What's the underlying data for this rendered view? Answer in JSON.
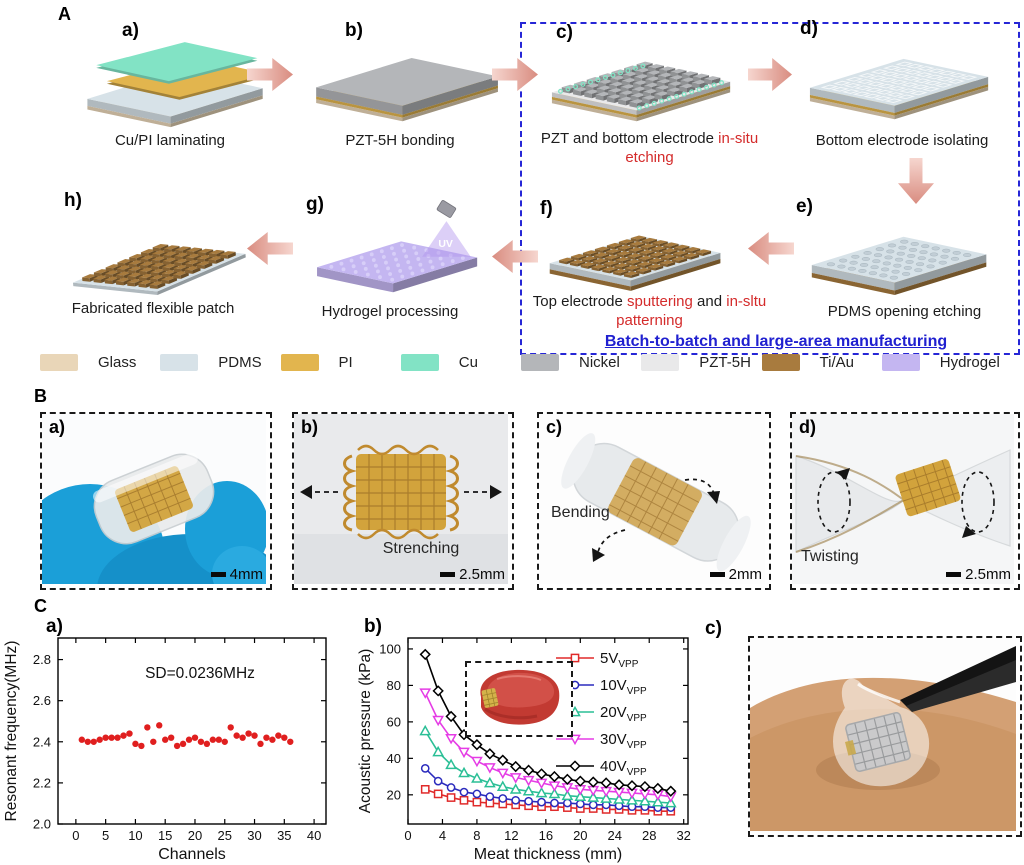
{
  "colors": {
    "accent_red": "#d42b2b",
    "box_blue": "#2626d6",
    "arrow_salmon": "#d98c80",
    "glove_blue": "#1b9fd8",
    "gold_device": "#d2a33c",
    "skin": "#d3a074"
  },
  "materials": [
    {
      "label": "Glass",
      "color": "#e9d6b8"
    },
    {
      "label": "PDMS",
      "color": "#d7e2e8"
    },
    {
      "label": "PI",
      "color": "#e2b54e"
    },
    {
      "label": "Cu",
      "color": "#82e3c5"
    },
    {
      "label": "Nickel",
      "color": "#b4b6b9"
    },
    {
      "label": "PZT-5H",
      "color": "#e9e9ea"
    },
    {
      "label": "Ti/Au",
      "color": "#a87b3e"
    },
    {
      "label": "Hydrogel",
      "color": "#c4b6f1"
    }
  ],
  "panel_a": {
    "label": "A",
    "note": "Batch-to-batch and large-area manufacturing",
    "steps": {
      "a": {
        "label": "a)",
        "caption": "Cu/PI laminating"
      },
      "b": {
        "label": "b)",
        "caption": "PZT-5H bonding"
      },
      "c": {
        "label": "c)",
        "cap_black1": "PZT and bottom electrode ",
        "cap_red1": "in-situ",
        "cap_red2": "etching"
      },
      "d": {
        "label": "d)",
        "caption": "Bottom electrode isolating"
      },
      "e": {
        "label": "e)",
        "caption": "PDMS opening etching"
      },
      "f": {
        "label": "f)",
        "cap_black1": "Top electrode ",
        "cap_red1": "sputtering",
        "cap_black2": " and ",
        "cap_red2": "in-sltu",
        "cap_red3": "patterning"
      },
      "g": {
        "label": "g)",
        "caption": "Hydrogel processing",
        "uv_label": "UV"
      },
      "h": {
        "label": "h)",
        "caption": "Fabricated flexible patch"
      }
    }
  },
  "panel_b": {
    "label": "B",
    "photos": [
      {
        "label": "a)",
        "scale": "4mm"
      },
      {
        "label": "b)",
        "scale": "2.5mm",
        "annotation": "Strenching"
      },
      {
        "label": "c)",
        "scale": "2mm",
        "annotation": "Bending"
      },
      {
        "label": "d)",
        "scale": "2.5mm",
        "annotation": "Twisting"
      }
    ]
  },
  "panel_c": {
    "label": "C",
    "sub_a": "a)",
    "sub_b": "b)",
    "sub_c": "c)"
  },
  "chart_data": [
    {
      "type": "scatter",
      "title": "",
      "xlabel": "Channels",
      "ylabel": "Resonant frequency(MHz)",
      "annotation": "SD=0.0236MHz",
      "xlim": [
        -3,
        42
      ],
      "ylim": [
        2.0,
        2.905
      ],
      "xticks": [
        0,
        5,
        10,
        15,
        20,
        25,
        30,
        35,
        40
      ],
      "yticks": [
        "2.0",
        "2.2",
        "2.4",
        "2.6",
        "2.8"
      ],
      "marker_color": "#e01f1f",
      "x": [
        1,
        2,
        3,
        4,
        5,
        6,
        7,
        8,
        9,
        10,
        11,
        12,
        13,
        14,
        15,
        16,
        17,
        18,
        19,
        20,
        21,
        22,
        23,
        24,
        25,
        26,
        27,
        28,
        29,
        30,
        31,
        32,
        33,
        34,
        35,
        36
      ],
      "y": [
        2.41,
        2.4,
        2.4,
        2.41,
        2.42,
        2.42,
        2.42,
        2.43,
        2.44,
        2.39,
        2.38,
        2.47,
        2.4,
        2.48,
        2.41,
        2.42,
        2.38,
        2.39,
        2.41,
        2.42,
        2.4,
        2.39,
        2.41,
        2.41,
        2.4,
        2.47,
        2.43,
        2.42,
        2.44,
        2.43,
        2.39,
        2.42,
        2.41,
        2.43,
        2.42,
        2.4
      ]
    },
    {
      "type": "line",
      "title": "",
      "xlabel": "Meat thickness (mm)",
      "ylabel": "Acoustic pressure (kPa)",
      "xlim": [
        0,
        32.5
      ],
      "ylim": [
        4,
        106
      ],
      "xticks": [
        0,
        4,
        8,
        12,
        16,
        20,
        24,
        28,
        32
      ],
      "yticks": [
        20,
        40,
        60,
        80,
        100
      ],
      "legend_position": "top-right",
      "x": [
        2,
        3.5,
        5,
        6.5,
        8,
        9.5,
        11,
        12.5,
        14,
        15.5,
        17,
        18.5,
        20,
        21.5,
        23,
        24.5,
        26,
        27.5,
        29,
        30.5
      ],
      "series": [
        {
          "label": "5V",
          "sub": "VPP",
          "marker": "square",
          "color": "#e02a2a",
          "values": [
            23,
            20.5,
            18.5,
            17,
            16,
            15.5,
            15,
            14.5,
            14,
            13.5,
            13.5,
            13,
            12.5,
            12.5,
            12,
            12,
            11.5,
            11.5,
            11,
            11
          ]
        },
        {
          "label": "10V",
          "sub": "VPP",
          "marker": "circle",
          "color": "#2b2bbd",
          "values": [
            34.5,
            27.5,
            24,
            21.5,
            20.5,
            19,
            18,
            17,
            16.5,
            16,
            15.5,
            15.5,
            15,
            14.5,
            14.5,
            14,
            13.5,
            13.5,
            13,
            13
          ]
        },
        {
          "label": "20V",
          "sub": "VPP",
          "marker": "triangle-up",
          "color": "#2bbf96",
          "values": [
            55,
            43.5,
            36.5,
            32,
            29,
            26.5,
            24.5,
            23,
            22,
            21,
            20.5,
            19.5,
            19,
            18.5,
            18,
            17.5,
            17,
            16.5,
            16,
            15.5
          ]
        },
        {
          "label": "30V",
          "sub": "VPP",
          "marker": "triangle-down",
          "color": "#e53ce5",
          "values": [
            76,
            61,
            51,
            43.5,
            38.5,
            35,
            32,
            29.5,
            28,
            26.5,
            25,
            24,
            23,
            22.5,
            22,
            21.5,
            21,
            20.5,
            20,
            19
          ]
        },
        {
          "label": "40V",
          "sub": "VPP",
          "marker": "diamond",
          "color": "#000000",
          "values": [
            97,
            77,
            63,
            53,
            47.5,
            42.5,
            39,
            35.5,
            33.5,
            31.5,
            30,
            28.5,
            27.5,
            27,
            26.5,
            25.5,
            25,
            24.5,
            23.5,
            22
          ]
        }
      ]
    }
  ]
}
